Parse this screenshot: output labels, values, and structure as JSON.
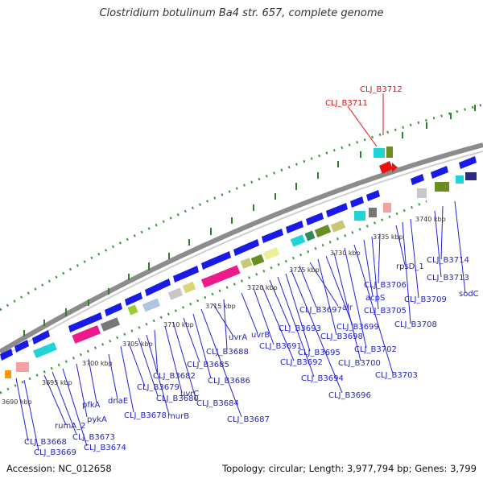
{
  "title": "Clostridium botulinum Ba4 str. 657, complete genome",
  "footer": {
    "accession": "Accession: NC_012658",
    "summary": "Topology: circular; Length: 3,977,794 bp; Genes: 3,799"
  },
  "ticks": [
    "3690 kbp",
    "3695 kbp",
    "3700 kbp",
    "3705 kbp",
    "3710 kbp",
    "3715 kbp",
    "3720 kbp",
    "3725 kbp",
    "3730 kbp",
    "3735 kbp",
    "3740 kbp"
  ],
  "gene_labels_highlight": [
    "CLJ_B3711",
    "CLJ_B3712"
  ],
  "gene_labels": [
    "CLJ_B3668",
    "CLJ_B3669",
    "rumA_2",
    "CLJ_B3673",
    "CLJ_B3674",
    "pykA",
    "pfkA",
    "dnaE",
    "CLJ_B3678",
    "CLJ_B3679",
    "CLJ_B3680",
    "murB",
    "CLJ_B3682",
    "uvrC",
    "CLJ_B3684",
    "CLJ_B3685",
    "CLJ_B3686",
    "CLJ_B3687",
    "uvrA",
    "CLJ_B3688",
    "uvrB",
    "CLJ_B3691",
    "CLJ_B3692",
    "CLJ_B3693",
    "CLJ_B3694",
    "CLJ_B3695",
    "CLJ_B3696",
    "CLJ_B3697",
    "alr",
    "CLJ_B3698",
    "CLJ_B3699",
    "CLJ_B3700",
    "CLJ_B3702",
    "CLJ_B3703",
    "acpS",
    "CLJ_B3705",
    "CLJ_B3706",
    "rpsD_1",
    "CLJ_B3708",
    "CLJ_B3709",
    "CLJ_B3713",
    "CLJ_B3714",
    "sodC"
  ]
}
